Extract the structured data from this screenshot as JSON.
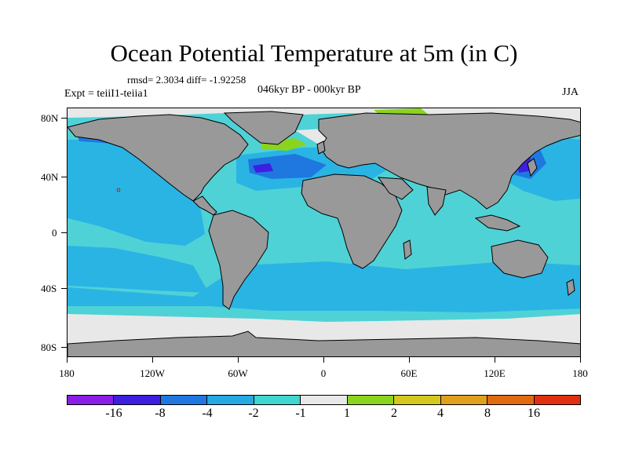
{
  "title": "Ocean Potential Temperature at 5m (in C)",
  "stats": "rmsd= 2.3034  diff= -1.92258",
  "expt": "Expt = teiiI1-teiia1",
  "period": "046kyr BP - 000kyr BP",
  "season": "JJA",
  "axes": {
    "lat_labels": [
      "80N",
      "40N",
      "0",
      "40S",
      "80S"
    ],
    "lon_labels": [
      "180",
      "120W",
      "60W",
      "0",
      "60E",
      "120E",
      "180"
    ]
  },
  "legend": {
    "labels": [
      "-16",
      "-8",
      "-4",
      "-2",
      "-1",
      "1",
      "2",
      "4",
      "8",
      "16"
    ],
    "colors": [
      "#8a1ee6",
      "#3d1fe0",
      "#1e78e0",
      "#26a8e2",
      "#3fd6d0",
      "#e8e8e8",
      "#8ad41e",
      "#d4c81e",
      "#e0a01e",
      "#e06a10",
      "#e03010"
    ]
  },
  "colors": {
    "land": "#999999",
    "coast": "#000000",
    "ocean_base": "#4fd2d6",
    "ocean_cool": "#2ab4e4",
    "ocean_cold": "#1e78e0",
    "ocean_very_cold": "#3d1fe0",
    "near_zero": "#e8e8e8",
    "warm_green": "#8ad41e"
  }
}
